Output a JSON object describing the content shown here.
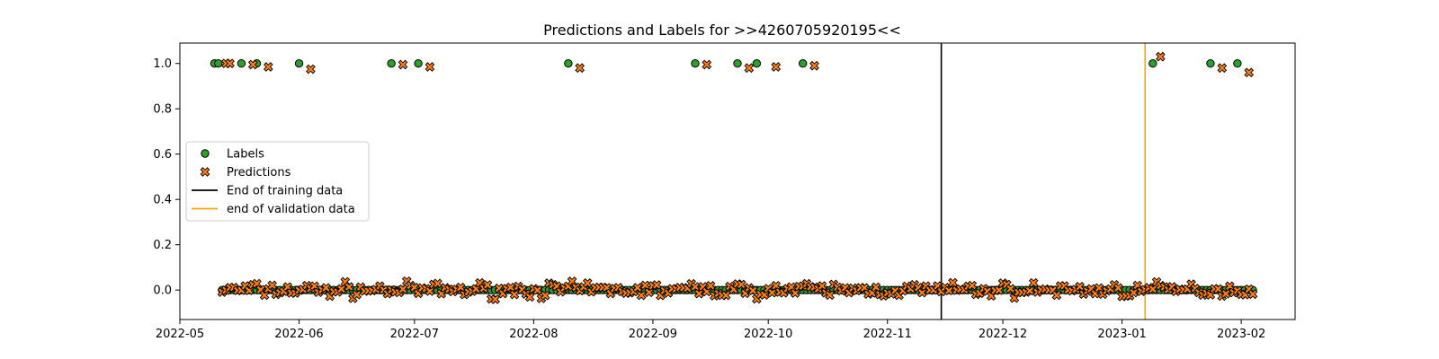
{
  "chart_data": {
    "type": "scatter",
    "title": "Predictions and Labels for >>4260705920195<<",
    "xlabel": "",
    "ylabel": "",
    "x_axis_type": "date",
    "xlim": [
      "2022-05-01",
      "2023-02-15"
    ],
    "ylim": [
      -0.13,
      1.09
    ],
    "x_ticks": [
      "2022-05-01",
      "2022-06-01",
      "2022-07-01",
      "2022-08-01",
      "2022-09-01",
      "2022-10-01",
      "2022-11-01",
      "2022-12-01",
      "2023-01-01",
      "2023-02-01"
    ],
    "x_tick_labels": [
      "2022-05",
      "2022-06",
      "2022-07",
      "2022-08",
      "2022-09",
      "2022-10",
      "2022-11",
      "2022-12",
      "2023-01",
      "2023-02"
    ],
    "y_ticks": [
      0.0,
      0.2,
      0.4,
      0.6,
      0.8,
      1.0
    ],
    "y_tick_labels": [
      "0.0",
      "0.2",
      "0.4",
      "0.6",
      "0.8",
      "1.0"
    ],
    "grid": false,
    "legend_position": "center-left",
    "colors": {
      "labels_fill": "#2ca02c",
      "predictions_fill": "#ff7f0e",
      "marker_edge": "#000000",
      "training_line": "#000000",
      "validation_line": "#ffa500"
    },
    "vertical_lines": [
      {
        "name": "End of training data",
        "x": "2022-11-15",
        "color": "#000000"
      },
      {
        "name": "end of validation data",
        "x": "2023-01-07",
        "color": "#ffa500"
      }
    ],
    "legend": [
      {
        "label": "Labels",
        "marker": "circle",
        "color": "#2ca02c"
      },
      {
        "label": "Predictions",
        "marker": "x",
        "color": "#ff7f0e"
      },
      {
        "label": "End of training data",
        "marker": "line",
        "color": "#000000"
      },
      {
        "label": "end of validation data",
        "marker": "line",
        "color": "#ffa500"
      }
    ],
    "series": [
      {
        "name": "Labels",
        "marker": "circle",
        "points": [
          [
            "2022-05-10",
            1.0
          ],
          [
            "2022-05-11",
            1.0
          ],
          [
            "2022-05-17",
            1.0
          ],
          [
            "2022-05-21",
            1.0
          ],
          [
            "2022-06-01",
            1.0
          ],
          [
            "2022-06-25",
            1.0
          ],
          [
            "2022-07-02",
            1.0
          ],
          [
            "2022-08-10",
            1.0
          ],
          [
            "2022-09-12",
            1.0
          ],
          [
            "2022-09-23",
            1.0
          ],
          [
            "2022-09-28",
            1.0
          ],
          [
            "2022-10-10",
            1.0
          ],
          [
            "2023-01-09",
            1.0
          ],
          [
            "2023-01-24",
            1.0
          ],
          [
            "2023-01-31",
            1.0
          ]
        ],
        "zero_range": [
          "2022-05-12",
          "2023-02-04"
        ],
        "zero_value": 0.0
      },
      {
        "name": "Predictions",
        "marker": "x",
        "points": [
          [
            "2022-05-13",
            1.0
          ],
          [
            "2022-05-14",
            1.0
          ],
          [
            "2022-05-20",
            0.995
          ],
          [
            "2022-05-24",
            0.985
          ],
          [
            "2022-06-04",
            0.975
          ],
          [
            "2022-06-28",
            0.995
          ],
          [
            "2022-07-05",
            0.985
          ],
          [
            "2022-08-13",
            0.98
          ],
          [
            "2022-09-15",
            0.995
          ],
          [
            "2022-09-26",
            0.98
          ],
          [
            "2022-10-03",
            0.985
          ],
          [
            "2022-10-13",
            0.99
          ],
          [
            "2023-01-11",
            1.03
          ],
          [
            "2023-01-27",
            0.98
          ],
          [
            "2023-02-03",
            0.96
          ]
        ],
        "noise_range": [
          "2022-05-12",
          "2023-02-04"
        ],
        "noise_amplitude": 0.035
      }
    ]
  }
}
